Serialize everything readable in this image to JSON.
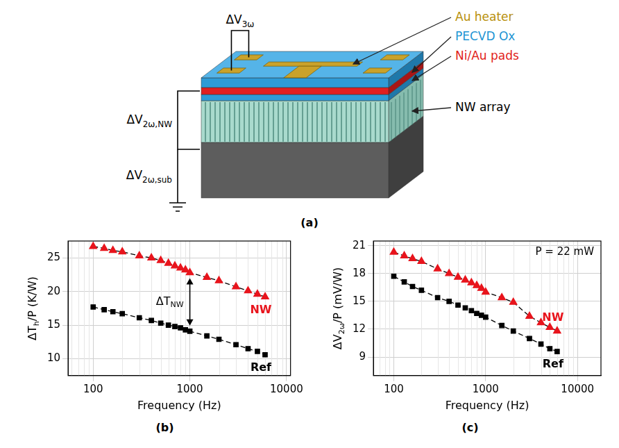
{
  "diagram": {
    "panel": "(a)",
    "labels": [
      "Au heater",
      "PECVD Ox",
      "Ni/Au pads",
      "NW array"
    ],
    "voltages": [
      [
        "ΔV",
        {
          "sub": "3ω"
        }
      ],
      [
        "ΔV",
        {
          "sub": "2ω,NW"
        }
      ],
      [
        "ΔV",
        {
          "sub": "2ω,sub"
        }
      ]
    ]
  },
  "chart_data": [
    {
      "type": "line",
      "title": "(b)",
      "xlabel": "Frequency (Hz)",
      "ylabel": [
        "ΔT",
        {
          "sub": "h"
        },
        "/P (K/W)"
      ],
      "x": [
        100,
        130,
        160,
        200,
        300,
        400,
        500,
        600,
        700,
        800,
        900,
        1000,
        1500,
        2000,
        3000,
        4000,
        5000,
        6000
      ],
      "series": [
        {
          "name": "NW",
          "color": "#e8141c",
          "marker": "triangle",
          "line_style": "dashed",
          "values": [
            26.7,
            26.4,
            26.1,
            25.9,
            25.3,
            25.0,
            24.6,
            24.2,
            23.8,
            23.5,
            23.2,
            22.8,
            22.1,
            21.6,
            20.7,
            20.1,
            19.6,
            19.2
          ]
        },
        {
          "name": "Ref",
          "color": "#000000",
          "marker": "square",
          "line_style": "dashed",
          "values": [
            17.7,
            17.3,
            17.0,
            16.7,
            16.1,
            15.7,
            15.3,
            15.0,
            14.8,
            14.6,
            14.3,
            14.1,
            13.4,
            12.9,
            12.1,
            11.5,
            11.1,
            10.6
          ]
        }
      ],
      "xlim": [
        55,
        11000
      ],
      "ylim": [
        7.5,
        27.5
      ],
      "xticks": [
        100,
        1000,
        10000
      ],
      "yticks": [
        10,
        15,
        20,
        25
      ],
      "log": "x",
      "grid": true,
      "annotations": [
        {
          "text": [
            "ΔT",
            {
              "sub": "NW"
            }
          ],
          "at_x": 1000,
          "between": [
            "NW",
            "Ref"
          ]
        }
      ]
    },
    {
      "type": "line",
      "title": "(c)",
      "xlabel": "Frequency (Hz)",
      "ylabel": [
        "ΔV",
        {
          "sub": "2ω"
        },
        "/P (mV/W)"
      ],
      "x": [
        100,
        130,
        160,
        200,
        300,
        400,
        500,
        600,
        700,
        800,
        900,
        1000,
        1500,
        2000,
        3000,
        4000,
        5000,
        6000
      ],
      "series": [
        {
          "name": "NW",
          "color": "#e8141c",
          "marker": "triangle",
          "line_style": "dashed",
          "values": [
            20.3,
            19.9,
            19.6,
            19.3,
            18.5,
            18.0,
            17.6,
            17.3,
            17.0,
            16.7,
            16.4,
            16.0,
            15.4,
            14.9,
            13.4,
            12.7,
            12.2,
            11.8
          ]
        },
        {
          "name": "Ref",
          "color": "#000000",
          "marker": "square",
          "line_style": "dashed",
          "values": [
            17.7,
            17.1,
            16.6,
            16.2,
            15.4,
            15.0,
            14.6,
            14.3,
            14.0,
            13.7,
            13.5,
            13.3,
            12.4,
            11.8,
            11.0,
            10.4,
            9.9,
            9.6
          ]
        }
      ],
      "xlim": [
        60,
        18000
      ],
      "ylim": [
        7,
        21.5
      ],
      "xticks": [
        100,
        1000,
        10000
      ],
      "yticks": [
        9,
        12,
        15,
        18,
        21
      ],
      "log": "x",
      "grid": true,
      "annotations": [
        {
          "text": "P = 22 mW"
        }
      ]
    }
  ]
}
